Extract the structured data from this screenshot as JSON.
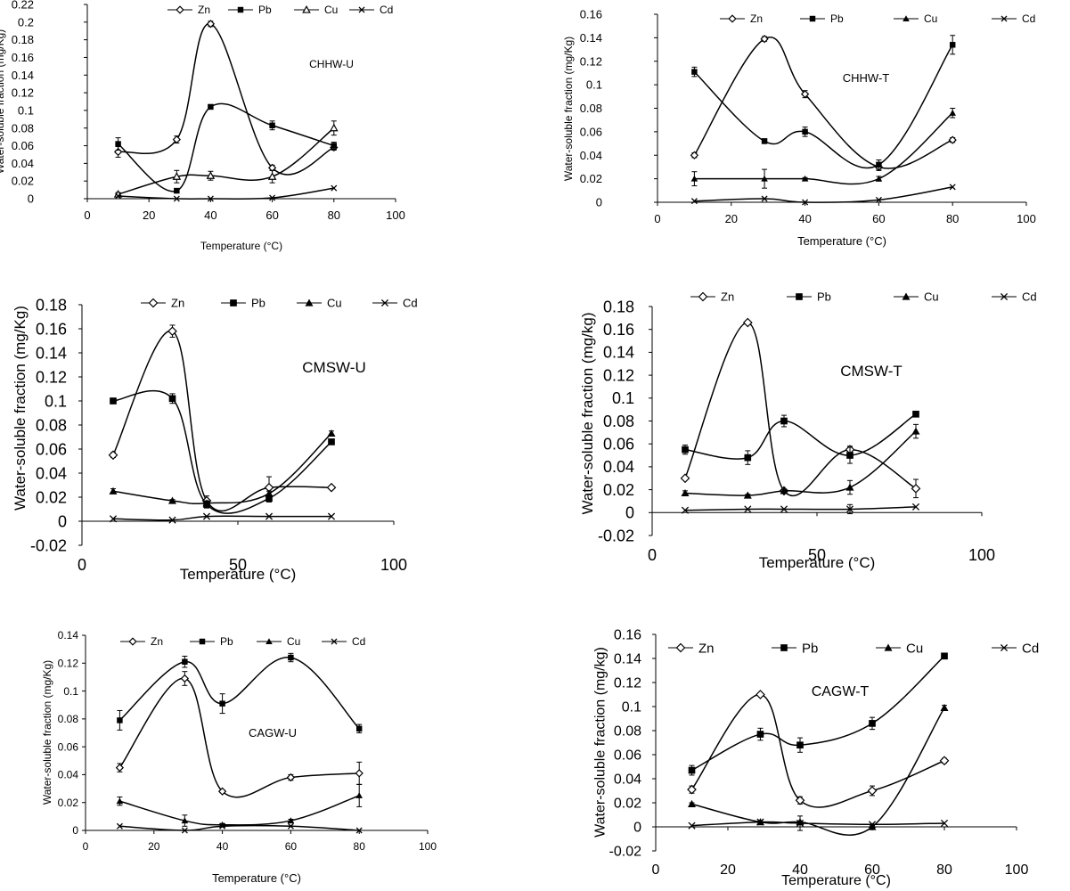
{
  "figure": {
    "panels": [
      {
        "id": "chhw-u",
        "panel_label": "CHHW-U",
        "chart_data": {
          "type": "line",
          "panel_label": "CHHW-U",
          "xlabel": "Temperature (°C)",
          "ylabel": "Water-soluble fraction (mg/Kg)",
          "xlim": [
            0,
            100
          ],
          "ylim": [
            0,
            0.22
          ],
          "xticks": [
            0,
            20,
            40,
            60,
            80,
            100
          ],
          "yticks": [
            0,
            0.02,
            0.04,
            0.06,
            0.08,
            0.1,
            0.12,
            0.14,
            0.16,
            0.18,
            0.2,
            0.22
          ],
          "x": [
            10,
            29,
            40,
            60,
            80
          ],
          "legend": [
            "Zn",
            "Pb",
            "Cu",
            "Cd"
          ],
          "legend_position": "top",
          "series": [
            {
              "name": "Zn",
              "marker": "open-diamond",
              "values": [
                0.053,
                0.067,
                0.198,
                0.035,
                0.058
              ],
              "errors": [
                0.006,
                0.004,
                0.003,
                0.003,
                0.003
              ]
            },
            {
              "name": "Pb",
              "marker": "filled-square",
              "values": [
                0.062,
                0.009,
                0.104,
                0.083,
                0.06
              ],
              "errors": [
                0.007,
                0.002,
                0.002,
                0.005,
                0.004
              ]
            },
            {
              "name": "Cu",
              "marker": "open-triangle",
              "values": [
                0.005,
                0.025,
                0.026,
                0.025,
                0.08
              ],
              "errors": [
                0.002,
                0.007,
                0.005,
                0.007,
                0.008
              ]
            },
            {
              "name": "Cd",
              "marker": "cross",
              "values": [
                0.003,
                0.0,
                0.0,
                0.001,
                0.012
              ],
              "errors": [
                0,
                0,
                0,
                0,
                0
              ]
            }
          ]
        }
      },
      {
        "id": "chhw-t",
        "panel_label": "CHHW-T",
        "chart_data": {
          "type": "line",
          "panel_label": "CHHW-T",
          "xlabel": "Temperature (°C)",
          "ylabel": "Water-soluble fraction (mg/Kg)",
          "xlim": [
            0,
            100
          ],
          "ylim": [
            0,
            0.16
          ],
          "xticks": [
            0,
            20,
            40,
            60,
            80,
            100
          ],
          "yticks": [
            0,
            0.02,
            0.04,
            0.06,
            0.08,
            0.1,
            0.12,
            0.14,
            0.16
          ],
          "x": [
            10,
            29,
            40,
            60,
            80
          ],
          "legend": [
            "Zn",
            "Pb",
            "Cu",
            "Cd"
          ],
          "legend_position": "top",
          "series": [
            {
              "name": "Zn",
              "marker": "open-diamond",
              "values": [
                0.04,
                0.139,
                0.092,
                0.03,
                0.053
              ],
              "errors": [
                0.002,
                0.002,
                0.003,
                0.003,
                0.002
              ]
            },
            {
              "name": "Pb",
              "marker": "filled-square",
              "values": [
                0.111,
                0.052,
                0.06,
                0.032,
                0.134
              ],
              "errors": [
                0.004,
                0.002,
                0.004,
                0.004,
                0.008
              ]
            },
            {
              "name": "Cu",
              "marker": "filled-triangle",
              "values": [
                0.02,
                0.02,
                0.02,
                0.02,
                0.076
              ],
              "errors": [
                0.006,
                0.008,
                0.001,
                0.002,
                0.004
              ]
            },
            {
              "name": "Cd",
              "marker": "cross",
              "values": [
                0.001,
                0.003,
                0.0,
                0.002,
                0.013
              ],
              "errors": [
                0,
                0,
                0,
                0,
                0
              ]
            }
          ]
        }
      },
      {
        "id": "cmsw-u",
        "panel_label": "CMSW-U",
        "chart_data": {
          "type": "line",
          "panel_label": "CMSW-U",
          "xlabel": "Temperature (°C)",
          "ylabel": "Water-soluble fraction (mg/Kg)",
          "xlim": [
            0,
            100
          ],
          "ylim": [
            -0.02,
            0.18
          ],
          "xticks": [
            0,
            50,
            100
          ],
          "yticks": [
            -0.02,
            0,
            0.02,
            0.04,
            0.06,
            0.08,
            0.1,
            0.12,
            0.14,
            0.16,
            0.18
          ],
          "x": [
            10,
            29,
            40,
            60,
            80
          ],
          "legend": [
            "Zn",
            "Pb",
            "Cu",
            "Cd"
          ],
          "legend_position": "top",
          "series": [
            {
              "name": "Zn",
              "marker": "open-diamond",
              "values": [
                0.055,
                0.158,
                0.017,
                0.028,
                0.028
              ],
              "errors": [
                0.002,
                0.005,
                0.004,
                0.009,
                0.001
              ]
            },
            {
              "name": "Pb",
              "marker": "filled-square",
              "values": [
                0.1,
                0.102,
                0.014,
                0.019,
                0.066
              ],
              "errors": [
                0.002,
                0.004,
                0.003,
                0.003,
                0.002
              ]
            },
            {
              "name": "Cu",
              "marker": "filled-triangle",
              "values": [
                0.025,
                0.017,
                0.015,
                0.023,
                0.073
              ],
              "errors": [
                0.002,
                0.001,
                0.001,
                0.002,
                0.002
              ]
            },
            {
              "name": "Cd",
              "marker": "cross",
              "values": [
                0.002,
                0.001,
                0.004,
                0.004,
                0.004
              ],
              "errors": [
                0,
                0,
                0,
                0,
                0
              ]
            }
          ]
        }
      },
      {
        "id": "cmsw-t",
        "panel_label": "CMSW-T",
        "chart_data": {
          "type": "line",
          "panel_label": "CMSW-T",
          "xlabel": "Temperature (°C)",
          "ylabel": "Water-soluble fraction (mg/kg)",
          "xlim": [
            0,
            100
          ],
          "ylim": [
            -0.02,
            0.18
          ],
          "xticks": [
            0,
            50,
            100
          ],
          "yticks": [
            -0.02,
            0,
            0.02,
            0.04,
            0.06,
            0.08,
            0.1,
            0.12,
            0.14,
            0.16,
            0.18
          ],
          "x": [
            10,
            29,
            40,
            60,
            80
          ],
          "legend": [
            "Zn",
            "Pb",
            "Cu",
            "Cd"
          ],
          "legend_position": "top",
          "series": [
            {
              "name": "Zn",
              "marker": "open-diamond",
              "values": [
                0.03,
                0.166,
                0.019,
                0.055,
                0.021
              ],
              "errors": [
                0.001,
                0.001,
                0.001,
                0.003,
                0.008
              ]
            },
            {
              "name": "Pb",
              "marker": "filled-square",
              "values": [
                0.055,
                0.048,
                0.08,
                0.05,
                0.086
              ],
              "errors": [
                0.004,
                0.006,
                0.005,
                0.007,
                0.002
              ]
            },
            {
              "name": "Cu",
              "marker": "filled-triangle",
              "values": [
                0.017,
                0.015,
                0.019,
                0.022,
                0.071
              ],
              "errors": [
                0.002,
                0.001,
                0.001,
                0.006,
                0.006
              ]
            },
            {
              "name": "Cd",
              "marker": "cross",
              "values": [
                0.002,
                0.003,
                0.003,
                0.003,
                0.005
              ],
              "errors": [
                0,
                0,
                0,
                0.004,
                0
              ]
            }
          ]
        }
      },
      {
        "id": "cagw-u",
        "panel_label": "CAGW-U",
        "chart_data": {
          "type": "line",
          "panel_label": "CAGW-U",
          "xlabel": "Temperature (°C)",
          "ylabel": "Water-soluble fraction (mg/Kg)",
          "xlim": [
            0,
            100
          ],
          "ylim": [
            0,
            0.14
          ],
          "xticks": [
            0,
            20,
            40,
            60,
            80,
            100
          ],
          "yticks": [
            0,
            0.02,
            0.04,
            0.06,
            0.08,
            0.1,
            0.12,
            0.14
          ],
          "x": [
            10,
            29,
            40,
            60,
            80
          ],
          "legend": [
            "Zn",
            "Pb",
            "Cu",
            "Cd"
          ],
          "legend_position": "top",
          "series": [
            {
              "name": "Zn",
              "marker": "open-diamond",
              "values": [
                0.045,
                0.109,
                0.028,
                0.038,
                0.041
              ],
              "errors": [
                0.003,
                0.005,
                0.001,
                0.002,
                0.008
              ]
            },
            {
              "name": "Pb",
              "marker": "filled-square",
              "values": [
                0.079,
                0.121,
                0.091,
                0.124,
                0.073
              ],
              "errors": [
                0.007,
                0.004,
                0.007,
                0.003,
                0.003
              ]
            },
            {
              "name": "Cu",
              "marker": "filled-triangle",
              "values": [
                0.021,
                0.007,
                0.004,
                0.007,
                0.025
              ],
              "errors": [
                0.003,
                0.004,
                0.001,
                0.001,
                0.008
              ]
            },
            {
              "name": "Cd",
              "marker": "cross",
              "values": [
                0.003,
                0.0,
                0.003,
                0.003,
                0.0
              ],
              "errors": [
                0,
                0,
                0,
                0,
                0
              ]
            }
          ]
        }
      },
      {
        "id": "cagw-t",
        "panel_label": "CAGW-T",
        "chart_data": {
          "type": "line",
          "panel_label": "CAGW-T",
          "xlabel": "Temperature (°C)",
          "ylabel": "Water-soluble fraction (mg/kg)",
          "xlim": [
            0,
            100
          ],
          "ylim": [
            -0.02,
            0.16
          ],
          "xticks": [
            0,
            20,
            40,
            60,
            80,
            100
          ],
          "yticks": [
            -0.02,
            0,
            0.02,
            0.04,
            0.06,
            0.08,
            0.1,
            0.12,
            0.14,
            0.16
          ],
          "x": [
            10,
            29,
            40,
            60,
            80
          ],
          "legend": [
            "Zn",
            "Pb",
            "Cu",
            "Cd"
          ],
          "legend_position": "top",
          "series": [
            {
              "name": "Zn",
              "marker": "open-diamond",
              "values": [
                0.031,
                0.11,
                0.022,
                0.03,
                0.055
              ],
              "errors": [
                0.003,
                0.001,
                0.003,
                0.004,
                0.002
              ]
            },
            {
              "name": "Pb",
              "marker": "filled-square",
              "values": [
                0.047,
                0.077,
                0.068,
                0.086,
                0.142
              ],
              "errors": [
                0.004,
                0.005,
                0.006,
                0.005,
                0.001
              ]
            },
            {
              "name": "Cu",
              "marker": "filled-triangle",
              "values": [
                0.019,
                0.004,
                0.004,
                0.0,
                0.099
              ],
              "errors": [
                0.001,
                0.001,
                0.001,
                0.001,
                0.002
              ]
            },
            {
              "name": "Cd",
              "marker": "cross",
              "values": [
                0.001,
                0.004,
                0.003,
                0.002,
                0.003
              ],
              "errors": [
                0,
                0,
                0.006,
                0,
                0
              ]
            }
          ]
        }
      }
    ]
  }
}
